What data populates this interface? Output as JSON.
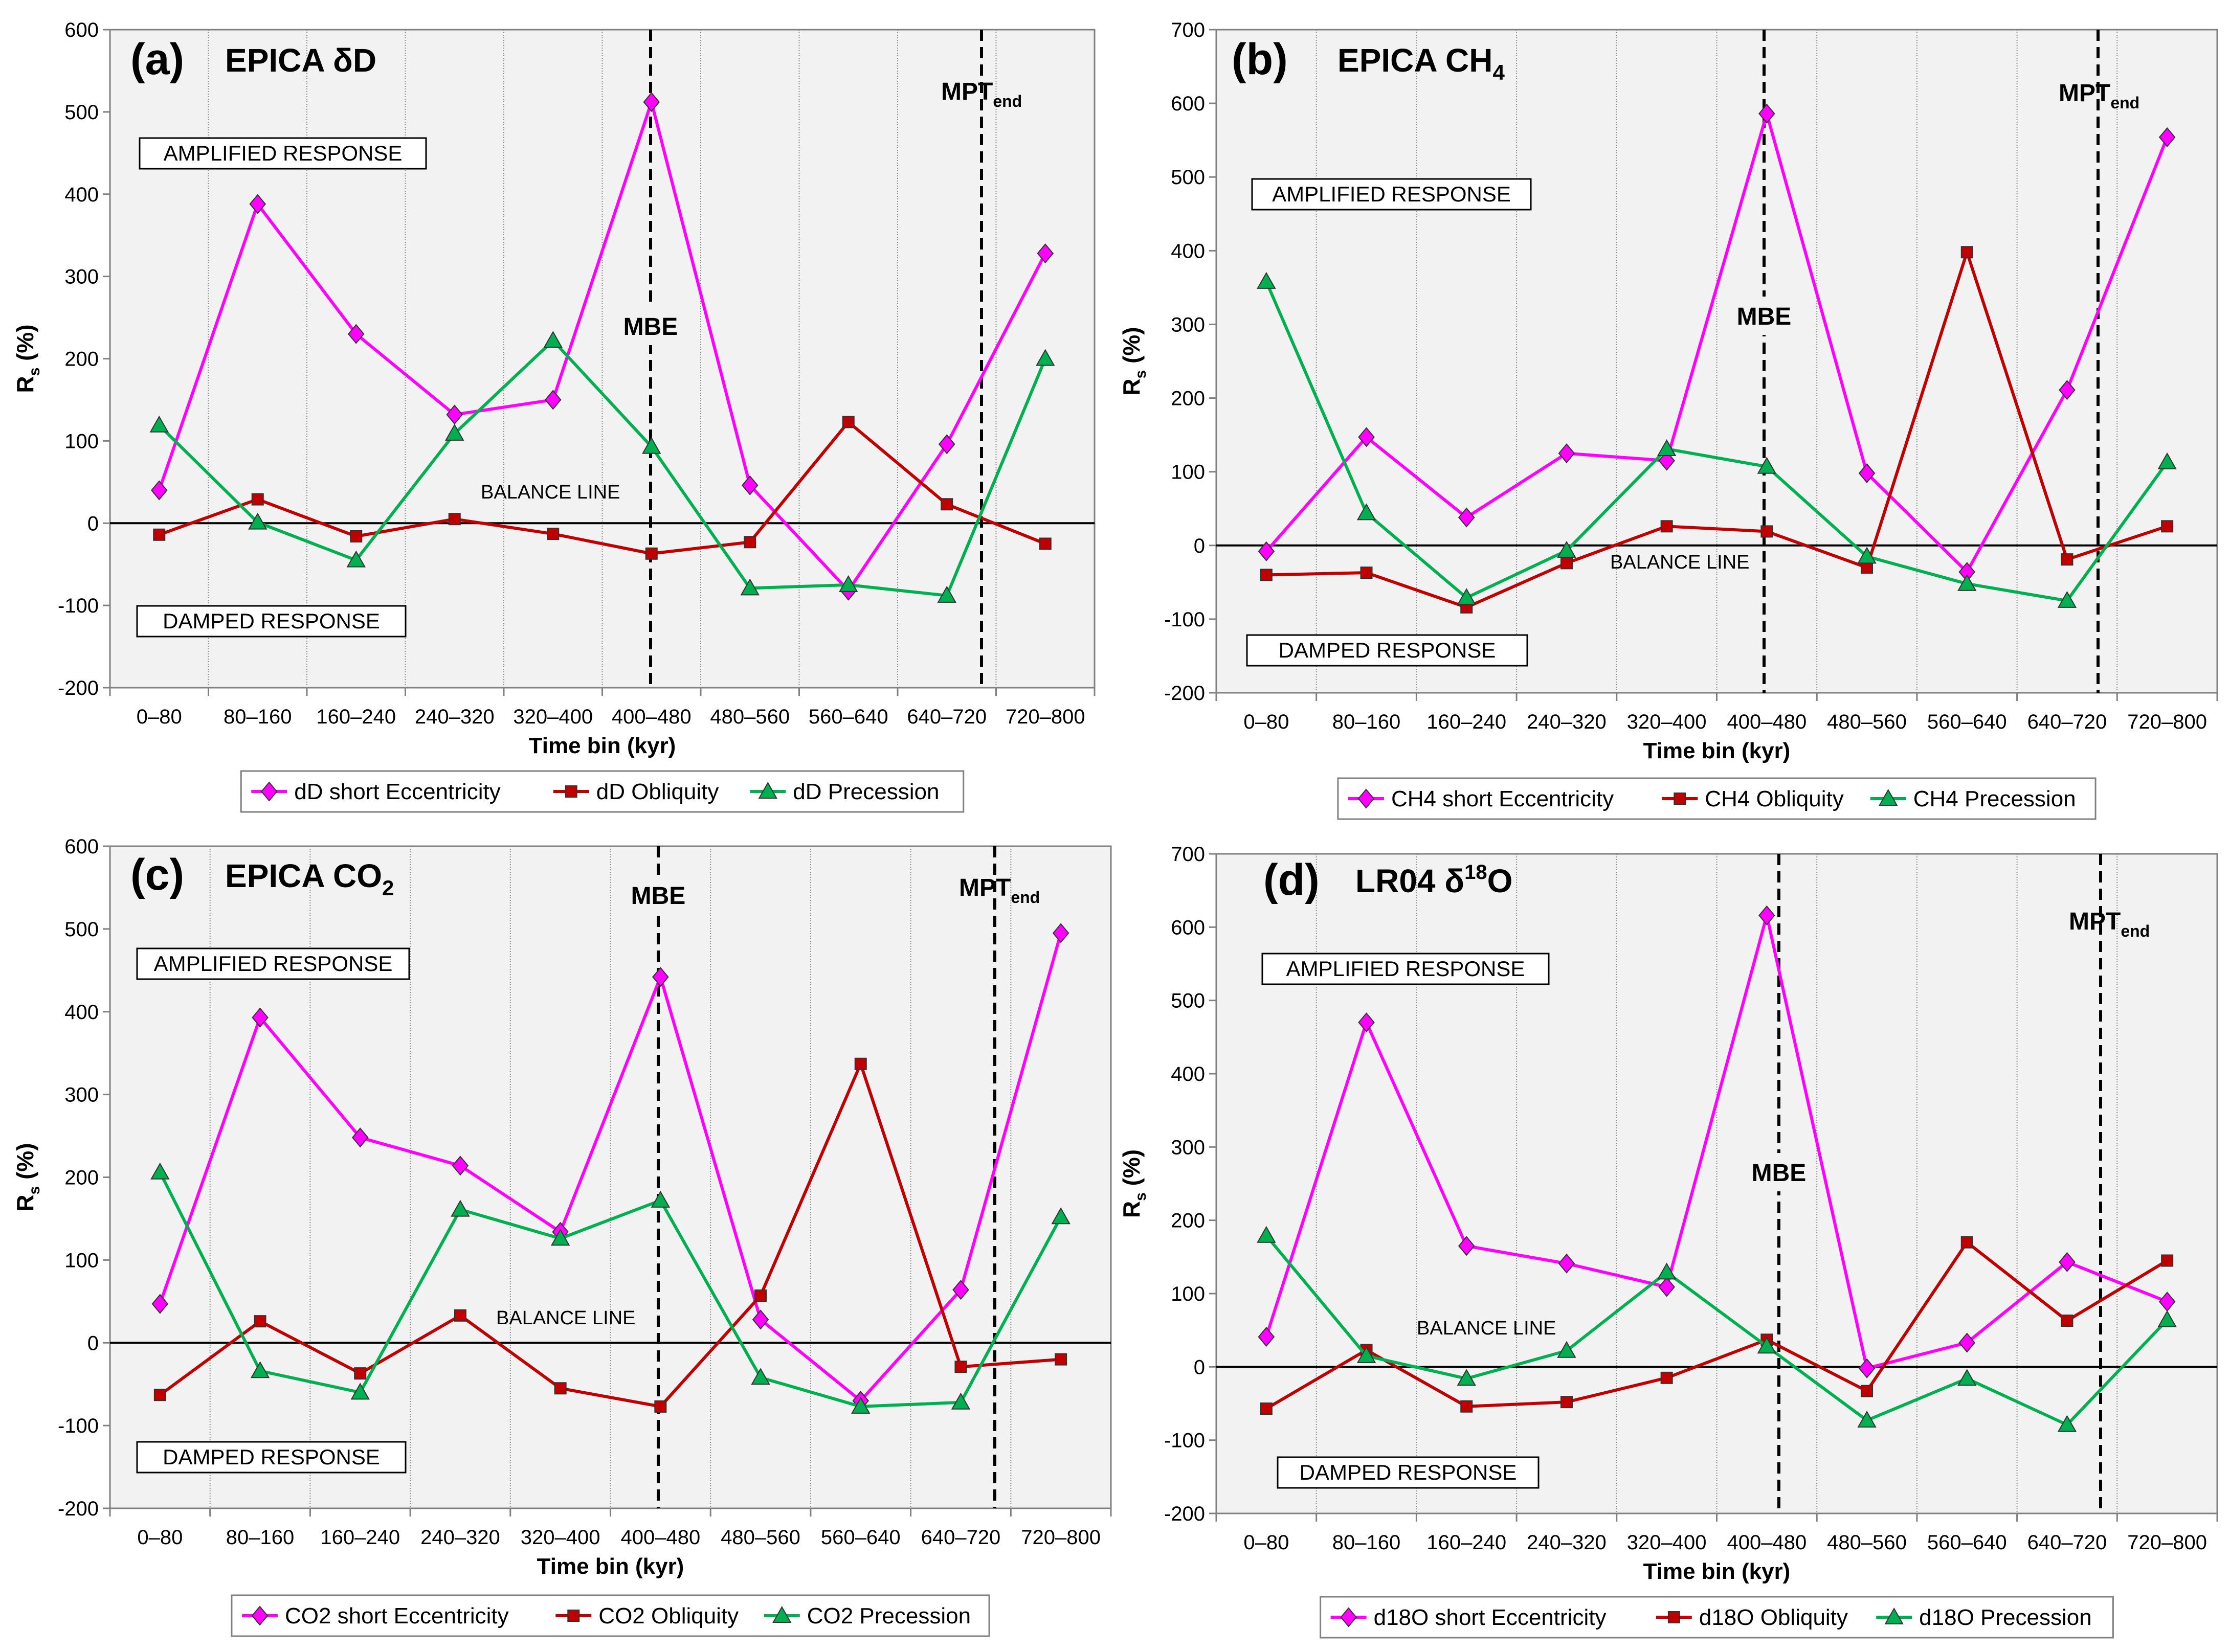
{
  "chart_data": [
    {
      "type": "line",
      "panel": "(a)",
      "title_main": "EPICA δD",
      "title_sub": "",
      "categories": [
        "0–80",
        "80–160",
        "160–240",
        "240–320",
        "320–400",
        "400–480",
        "480–560",
        "560–640",
        "640–720",
        "720–800"
      ],
      "xlabel": "Time bin (kyr)",
      "ylabel_main": "R",
      "ylabel_sub": "s",
      "ylabel_rest": " (%)",
      "ylim": [
        -200,
        600
      ],
      "ytick_step": 100,
      "series": [
        {
          "name": "dD short Eccentricity",
          "color": "#ff00ff",
          "marker": "diamond",
          "values": [
            40,
            388,
            230,
            132,
            150,
            512,
            46,
            -82,
            96,
            328
          ]
        },
        {
          "name": "dD Obliquity",
          "color": "#c00000",
          "marker": "square",
          "values": [
            -14,
            29,
            -16,
            5,
            -13,
            -37,
            -23,
            123,
            23,
            -25
          ]
        },
        {
          "name": "dD Precession",
          "color": "#00b050",
          "marker": "triangle",
          "values": [
            119,
            1,
            -45,
            109,
            222,
            93,
            -79,
            -75,
            -88,
            200
          ]
        }
      ],
      "annotations": {
        "amplified": "AMPLIFIED RESPONSE",
        "damped": "DAMPED RESPONSE",
        "balance": "BALANCE LINE",
        "mbe": "MBE",
        "mpt_main": "MPT",
        "mpt_sub": "end"
      }
    },
    {
      "type": "line",
      "panel": "(b)",
      "title_main": "EPICA CH",
      "title_sub": "4",
      "categories": [
        "0–80",
        "80–160",
        "160–240",
        "240–320",
        "320–400",
        "400–480",
        "480–560",
        "560–640",
        "640–720",
        "720–800"
      ],
      "xlabel": "Time bin (kyr)",
      "ylabel_main": "R",
      "ylabel_sub": "s",
      "ylabel_rest": " (%)",
      "ylim": [
        -200,
        700
      ],
      "ytick_step": 100,
      "series": [
        {
          "name": "CH4 short Eccentricity",
          "color": "#ff00ff",
          "marker": "diamond",
          "values": [
            -8,
            147,
            38,
            125,
            115,
            586,
            98,
            -36,
            211,
            554
          ]
        },
        {
          "name": "CH4 Obliquity",
          "color": "#c00000",
          "marker": "square",
          "values": [
            -40,
            -37,
            -84,
            -24,
            26,
            19,
            -30,
            398,
            -19,
            26
          ]
        },
        {
          "name": "CH4 Precession",
          "color": "#00b050",
          "marker": "triangle",
          "values": [
            358,
            44,
            -71,
            -7,
            131,
            107,
            -15,
            -52,
            -75,
            113
          ]
        }
      ],
      "annotations": {
        "amplified": "AMPLIFIED RESPONSE",
        "damped": "DAMPED RESPONSE",
        "balance": "BALANCE LINE",
        "mbe": "MBE",
        "mpt_main": "MPT",
        "mpt_sub": "end"
      }
    },
    {
      "type": "line",
      "panel": "(c)",
      "title_main": "EPICA CO",
      "title_sub": "2",
      "categories": [
        "0–80",
        "80–160",
        "160–240",
        "240–320",
        "320–400",
        "400–480",
        "480–560",
        "560–640",
        "640–720",
        "720–800"
      ],
      "xlabel": "Time bin (kyr)",
      "ylabel_main": "R",
      "ylabel_sub": "s",
      "ylabel_rest": " (%)",
      "ylim": [
        -200,
        600
      ],
      "ytick_step": 100,
      "series": [
        {
          "name": "CO2 short Eccentricity",
          "color": "#ff00ff",
          "marker": "diamond",
          "values": [
            47,
            393,
            248,
            214,
            134,
            442,
            28,
            -70,
            64,
            495
          ]
        },
        {
          "name": "CO2 Obliquity",
          "color": "#c00000",
          "marker": "square",
          "values": [
            -63,
            26,
            -37,
            33,
            -55,
            -77,
            57,
            337,
            -29,
            -20
          ]
        },
        {
          "name": "CO2 Precession",
          "color": "#00b050",
          "marker": "triangle",
          "values": [
            206,
            -34,
            -60,
            161,
            126,
            172,
            -42,
            -77,
            -72,
            152
          ]
        }
      ],
      "annotations": {
        "amplified": "AMPLIFIED RESPONSE",
        "damped": "DAMPED RESPONSE",
        "balance": "BALANCE LINE",
        "mbe": "MBE",
        "mpt_main": "MPT",
        "mpt_sub": "end"
      }
    },
    {
      "type": "line",
      "panel": "(d)",
      "title_main": "LR04 δ",
      "title_sup": "18",
      "title_after": "O",
      "categories": [
        "0–80",
        "80–160",
        "160–240",
        "240–320",
        "320–400",
        "400–480",
        "480–560",
        "560–640",
        "640–720",
        "720–800"
      ],
      "xlabel": "Time bin (kyr)",
      "ylabel_main": "R",
      "ylabel_sub": "s",
      "ylabel_rest": " (%)",
      "ylim": [
        -200,
        700
      ],
      "ytick_step": 100,
      "series": [
        {
          "name": "d18O short Eccentricity",
          "color": "#ff00ff",
          "marker": "diamond",
          "values": [
            41,
            470,
            165,
            141,
            109,
            616,
            -2,
            33,
            143,
            89
          ]
        },
        {
          "name": "d18O Obliquity",
          "color": "#c00000",
          "marker": "square",
          "values": [
            -57,
            23,
            -54,
            -48,
            -15,
            37,
            -33,
            170,
            63,
            145
          ]
        },
        {
          "name": "d18O Precession",
          "color": "#00b050",
          "marker": "triangle",
          "values": [
            179,
            15,
            -16,
            22,
            129,
            28,
            -73,
            -16,
            -79,
            64
          ]
        }
      ],
      "annotations": {
        "amplified": "AMPLIFIED RESPONSE",
        "damped": "DAMPED RESPONSE",
        "balance": "BALANCE LINE",
        "mbe": "MBE",
        "mpt_main": "MPT",
        "mpt_sub": "end"
      }
    }
  ]
}
